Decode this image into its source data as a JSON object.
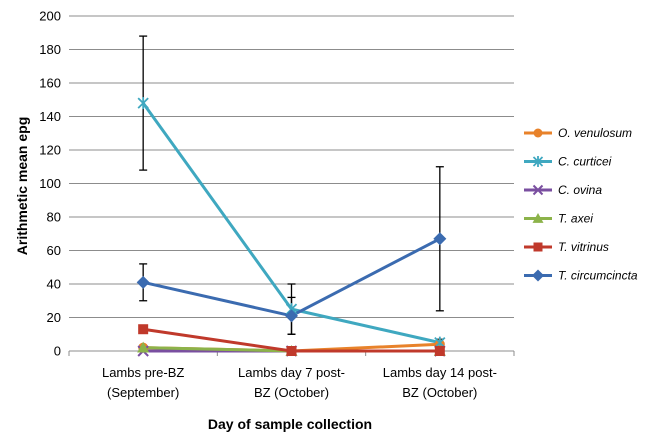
{
  "chart_data": {
    "type": "line",
    "xlabel": "Day of sample collection",
    "ylabel": "Arithmetic mean epg",
    "ylim": [
      0,
      200
    ],
    "yticks": [
      0,
      20,
      40,
      60,
      80,
      100,
      120,
      140,
      160,
      180,
      200
    ],
    "grid": "horizontal",
    "legend_position": "right",
    "categories": [
      [
        "Lambs pre-BZ",
        "(September)"
      ],
      [
        "Lambs day 7 post-",
        "BZ (October)"
      ],
      [
        "Lambs day 14 post-",
        "BZ (October)"
      ]
    ],
    "series": [
      {
        "name": "O. venulosum",
        "color": "#E8822A",
        "marker": "circle",
        "values": [
          2,
          0,
          4
        ],
        "error": null
      },
      {
        "name": "C. curticei",
        "color": "#3FA8C0",
        "marker": "star",
        "values": [
          148,
          25,
          5
        ],
        "error": [
          40,
          15,
          2
        ]
      },
      {
        "name": "C. ovina",
        "color": "#7A4FA0",
        "marker": "x",
        "values": [
          0,
          0,
          0
        ],
        "error": null
      },
      {
        "name": "T. axei",
        "color": "#8CB34A",
        "marker": "triangle",
        "values": [
          2,
          0,
          0
        ],
        "error": null
      },
      {
        "name": "T. vitrinus",
        "color": "#C0392B",
        "marker": "square",
        "values": [
          13,
          0,
          0
        ],
        "error": null
      },
      {
        "name": "T. circumcincta",
        "color": "#3B6BB0",
        "marker": "diamond",
        "values": [
          41,
          21,
          67
        ],
        "error": [
          11,
          11,
          43
        ]
      }
    ]
  }
}
